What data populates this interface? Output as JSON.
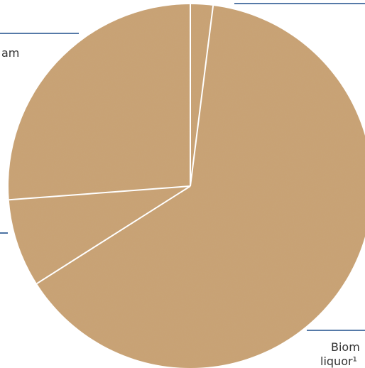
{
  "chart_data": {
    "type": "pie",
    "title": "",
    "slice_fill": "#c9a273",
    "leader_color": "#1f4e8c",
    "slices": [
      {
        "label": "",
        "value": 2.0
      },
      {
        "label": "Biom",
        "value": 64.0
      },
      {
        "label": "",
        "value": 7.8
      },
      {
        "label": "am",
        "value": 26.2
      }
    ],
    "label_texts": {
      "steam_partial": "am",
      "biomass_partial": "Biom",
      "liquor_partial": "liquor¹"
    }
  }
}
